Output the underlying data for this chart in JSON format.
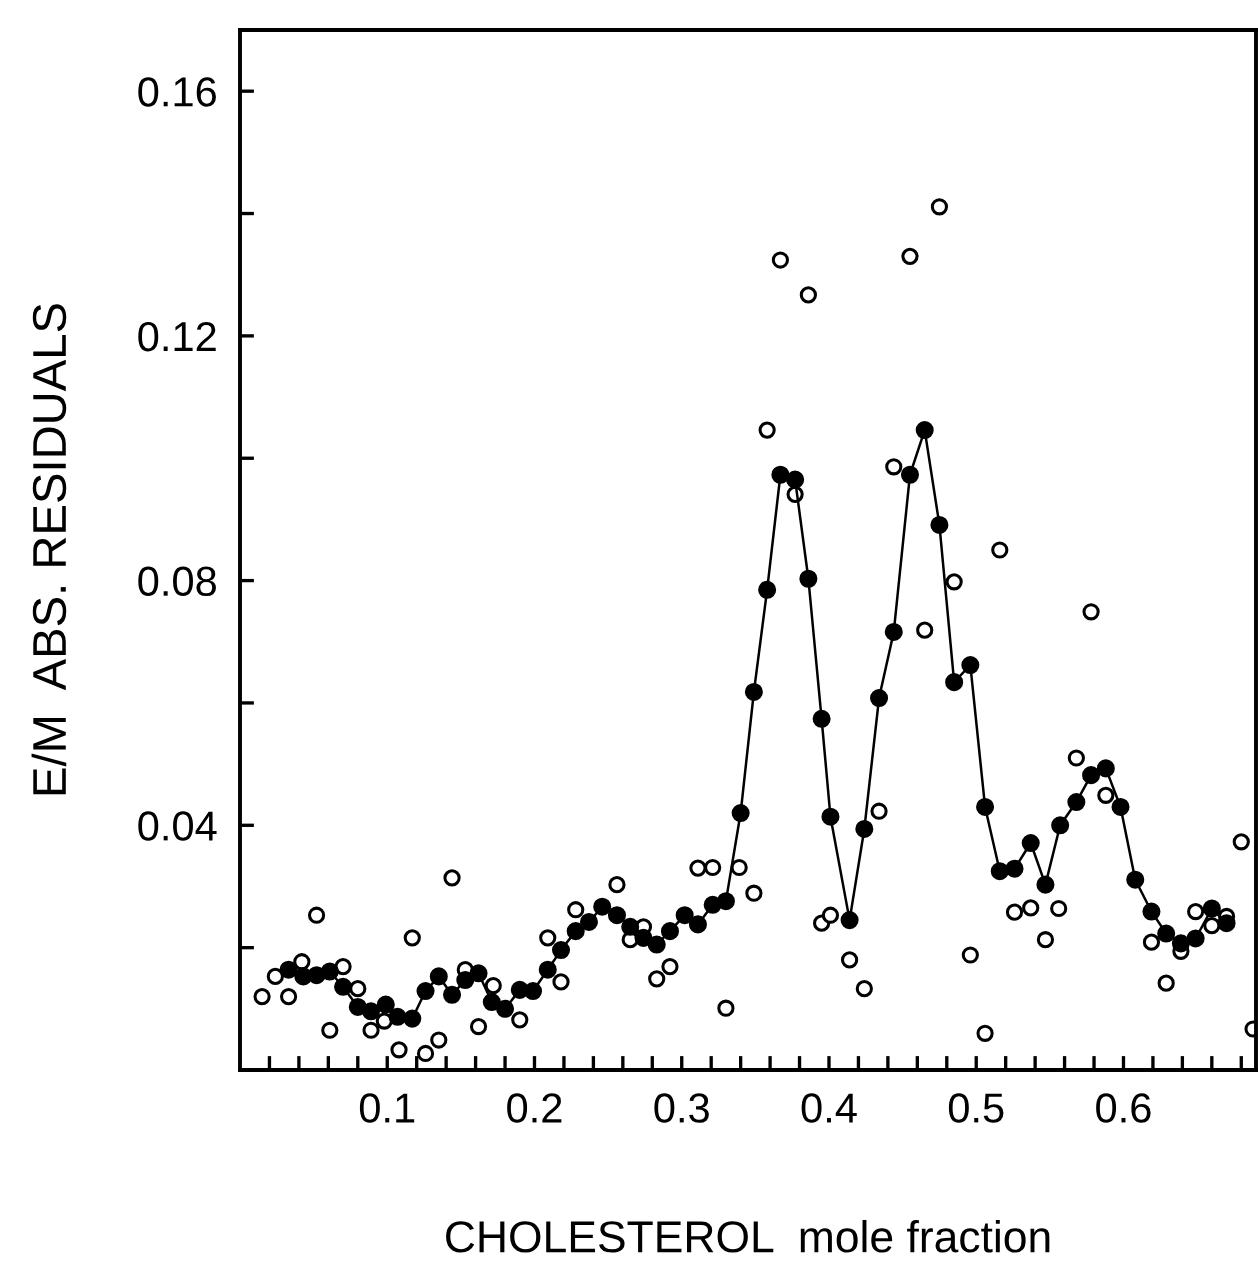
{
  "chart_data": {
    "type": "line",
    "xlabel": "CHOLESTEROL  mole fraction",
    "ylabel": "E/M  ABS. RESIDUALS",
    "xlim": [
      0,
      0.69
    ],
    "ylim": [
      0,
      0.17
    ],
    "xticks": [
      {
        "value": 0.02,
        "label": null
      },
      {
        "value": 0.04,
        "label": null
      },
      {
        "value": 0.06,
        "label": null
      },
      {
        "value": 0.08,
        "label": null
      },
      {
        "value": 0.1,
        "label": "0.1"
      },
      {
        "value": 0.12,
        "label": null
      },
      {
        "value": 0.14,
        "label": null
      },
      {
        "value": 0.16,
        "label": null
      },
      {
        "value": 0.18,
        "label": null
      },
      {
        "value": 0.2,
        "label": "0.2"
      },
      {
        "value": 0.22,
        "label": null
      },
      {
        "value": 0.24,
        "label": null
      },
      {
        "value": 0.26,
        "label": null
      },
      {
        "value": 0.28,
        "label": null
      },
      {
        "value": 0.3,
        "label": "0.3"
      },
      {
        "value": 0.32,
        "label": null
      },
      {
        "value": 0.34,
        "label": null
      },
      {
        "value": 0.36,
        "label": null
      },
      {
        "value": 0.38,
        "label": null
      },
      {
        "value": 0.4,
        "label": "0.4"
      },
      {
        "value": 0.42,
        "label": null
      },
      {
        "value": 0.44,
        "label": null
      },
      {
        "value": 0.46,
        "label": null
      },
      {
        "value": 0.48,
        "label": null
      },
      {
        "value": 0.5,
        "label": "0.5"
      },
      {
        "value": 0.52,
        "label": null
      },
      {
        "value": 0.54,
        "label": null
      },
      {
        "value": 0.56,
        "label": null
      },
      {
        "value": 0.58,
        "label": null
      },
      {
        "value": 0.6,
        "label": "0.6"
      },
      {
        "value": 0.62,
        "label": null
      },
      {
        "value": 0.64,
        "label": null
      },
      {
        "value": 0.66,
        "label": null
      },
      {
        "value": 0.68,
        "label": null
      }
    ],
    "yticks": [
      {
        "value": 0.02,
        "label": null
      },
      {
        "value": 0.04,
        "label": "0.04"
      },
      {
        "value": 0.06,
        "label": null
      },
      {
        "value": 0.08,
        "label": "0.08"
      },
      {
        "value": 0.1,
        "label": null
      },
      {
        "value": 0.12,
        "label": "0.12"
      },
      {
        "value": 0.14,
        "label": null
      },
      {
        "value": 0.16,
        "label": "0.16"
      }
    ],
    "grid": false,
    "legend": false,
    "series": [
      {
        "marker": "circle",
        "color": "#000000",
        "x": [
          0.033,
          0.043,
          0.052,
          0.061,
          0.07,
          0.08,
          0.089,
          0.099,
          0.107,
          0.117,
          0.126,
          0.135,
          0.144,
          0.153,
          0.162,
          0.171,
          0.18,
          0.19,
          0.199,
          0.209,
          0.218,
          0.228,
          0.237,
          0.246,
          0.256,
          0.265,
          0.274,
          0.283,
          0.292,
          0.302,
          0.311,
          0.321,
          0.33,
          0.34,
          0.349,
          0.358,
          0.367,
          0.377,
          0.386,
          0.395,
          0.401,
          0.414,
          0.424,
          0.434,
          0.444,
          0.455,
          0.465,
          0.475,
          0.485,
          0.496,
          0.506,
          0.516,
          0.526,
          0.537,
          0.547,
          0.557,
          0.568,
          0.578,
          0.588,
          0.598,
          0.608,
          0.619,
          0.629,
          0.639,
          0.649,
          0.66,
          0.67
        ],
        "values": [
          0.0164,
          0.0153,
          0.0155,
          0.0161,
          0.0136,
          0.0103,
          0.0096,
          0.0107,
          0.0087,
          0.0084,
          0.0129,
          0.0153,
          0.0123,
          0.0147,
          0.0158,
          0.0111,
          0.01,
          0.0131,
          0.0129,
          0.0164,
          0.0196,
          0.0227,
          0.0242,
          0.0267,
          0.0253,
          0.0234,
          0.0216,
          0.0205,
          0.0227,
          0.0253,
          0.0238,
          0.027,
          0.0276,
          0.042,
          0.0618,
          0.0785,
          0.0973,
          0.0965,
          0.0803,
          0.0574,
          0.0414,
          0.0245,
          0.0394,
          0.0608,
          0.0716,
          0.0973,
          0.1046,
          0.0891,
          0.0634,
          0.0662,
          0.043,
          0.0325,
          0.0329,
          0.0371,
          0.0303,
          0.04,
          0.0438,
          0.0482,
          0.0493,
          0.043,
          0.0311,
          0.0259,
          0.0223,
          0.0207,
          0.0215,
          0.0264,
          0.024
        ]
      },
      {
        "type": "scatter",
        "marker": "circle",
        "color": "#000000",
        "x": [
          0.015,
          0.024,
          0.033,
          0.042,
          0.052,
          0.061,
          0.07,
          0.08,
          0.089,
          0.098,
          0.108,
          0.117,
          0.126,
          0.135,
          0.144,
          0.153,
          0.162,
          0.172,
          0.19,
          0.209,
          0.218,
          0.228,
          0.256,
          0.265,
          0.274,
          0.283,
          0.292,
          0.311,
          0.321,
          0.33,
          0.339,
          0.349,
          0.358,
          0.367,
          0.377,
          0.386,
          0.395,
          0.401,
          0.414,
          0.424,
          0.434,
          0.444,
          0.455,
          0.465,
          0.475,
          0.485,
          0.496,
          0.506,
          0.516,
          0.526,
          0.537,
          0.547,
          0.556,
          0.568,
          0.578,
          0.588,
          0.619,
          0.629,
          0.639,
          0.649,
          0.66,
          0.67,
          0.68,
          0.688
        ],
        "values": [
          0.012,
          0.0153,
          0.012,
          0.0177,
          0.0253,
          0.0065,
          0.0169,
          0.0133,
          0.0065,
          0.008,
          0.0033,
          0.0216,
          0.0027,
          0.0049,
          0.0314,
          0.0164,
          0.0071,
          0.0138,
          0.0082,
          0.0216,
          0.0144,
          0.0262,
          0.0303,
          0.0213,
          0.0234,
          0.0149,
          0.0169,
          0.033,
          0.0331,
          0.0101,
          0.0331,
          0.0289,
          0.1046,
          0.1324,
          0.0941,
          0.1267,
          0.024,
          0.0253,
          0.018,
          0.0133,
          0.0423,
          0.0986,
          0.133,
          0.0719,
          0.1411,
          0.0798,
          0.0188,
          0.006,
          0.085,
          0.0258,
          0.0265,
          0.0213,
          0.0264,
          0.051,
          0.0749,
          0.0449,
          0.0209,
          0.0142,
          0.0194,
          0.0259,
          0.0236,
          0.0251,
          0.0373,
          0.0067
        ]
      }
    ]
  }
}
